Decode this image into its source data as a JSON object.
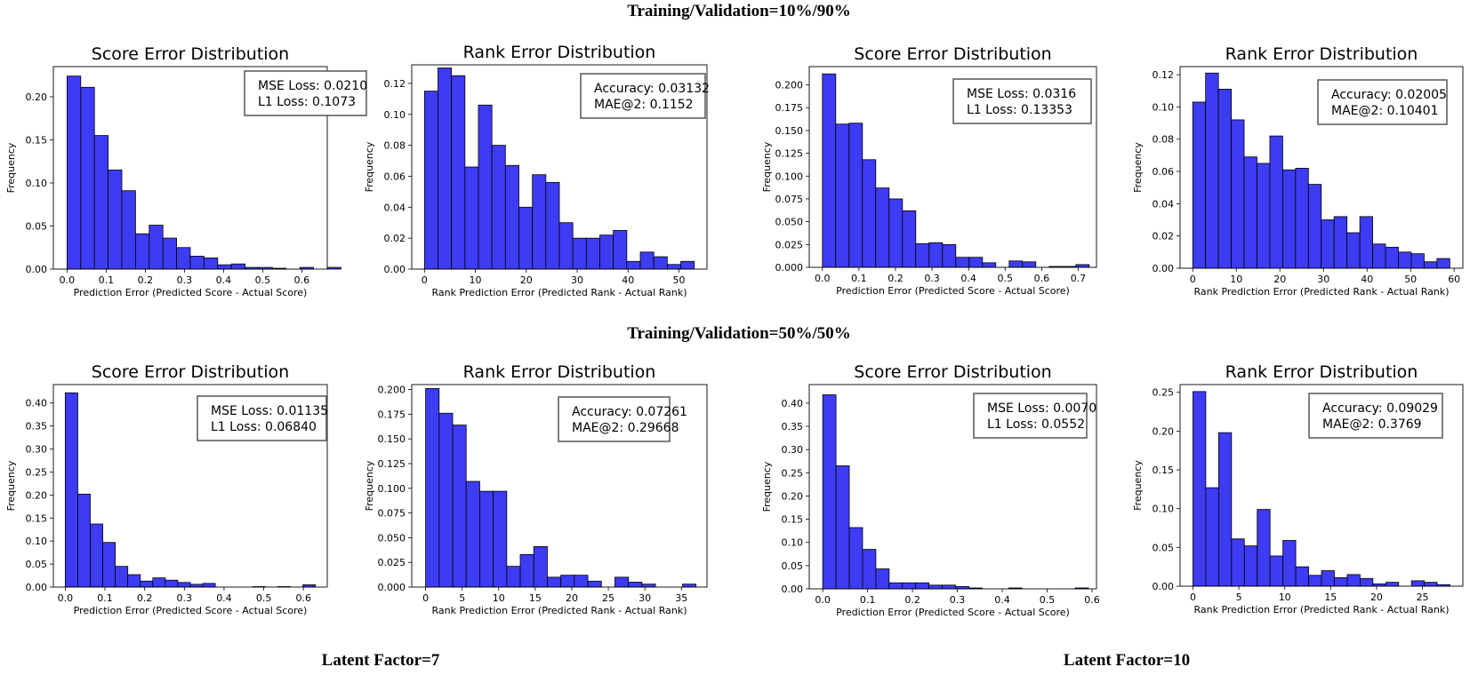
{
  "headers": {
    "top": "Training/Validation=10%/90%",
    "middle": "Training/Validation=50%/50%",
    "bottom_left": "Latent Factor=7",
    "bottom_right": "Latent Factor=10"
  },
  "colors": {
    "bar": "#3d3bf3",
    "bar_edge": "#000000"
  },
  "chart_data": [
    {
      "id": "c1",
      "type": "bar",
      "title": "Score Error Distribution",
      "xlabel": "Prediction Error (Predicted Score - Actual Score)",
      "ylabel": "Frequency",
      "bin_start": 0.0,
      "bin_width": 0.035,
      "values": [
        0.224,
        0.211,
        0.155,
        0.115,
        0.091,
        0.041,
        0.051,
        0.036,
        0.025,
        0.015,
        0.013,
        0.005,
        0.006,
        0.002,
        0.002,
        0.001,
        0,
        0.002,
        0,
        0.002
      ],
      "xlim": [
        -0.035,
        0.665
      ],
      "ylim": [
        0,
        0.235
      ],
      "xticks": [
        {
          "v": 0.0,
          "label": "0.0"
        },
        {
          "v": 0.1,
          "label": "0.1"
        },
        {
          "v": 0.2,
          "label": "0.2"
        },
        {
          "v": 0.3,
          "label": "0.3"
        },
        {
          "v": 0.4,
          "label": "0.4"
        },
        {
          "v": 0.5,
          "label": "0.5"
        },
        {
          "v": 0.6,
          "label": "0.6"
        }
      ],
      "yticks": [
        {
          "v": 0.0,
          "label": "0.00"
        },
        {
          "v": 0.05,
          "label": "0.05"
        },
        {
          "v": 0.1,
          "label": "0.10"
        },
        {
          "v": 0.15,
          "label": "0.15"
        },
        {
          "v": 0.2,
          "label": "0.20"
        }
      ],
      "annotation": [
        "MSE Loss: 0.0210",
        "L1 Loss: 0.1073"
      ]
    },
    {
      "id": "c2",
      "type": "bar",
      "title": "Rank Error Distribution",
      "xlabel": "Rank Prediction Error (Predicted Rank - Actual Rank)",
      "ylabel": "Frequency",
      "bin_start": 0,
      "bin_width": 2.65,
      "values": [
        0.115,
        0.13,
        0.125,
        0.066,
        0.106,
        0.08,
        0.067,
        0.04,
        0.061,
        0.056,
        0.03,
        0.02,
        0.02,
        0.022,
        0.025,
        0.005,
        0.011,
        0.008,
        0.003,
        0.005
      ],
      "xlim": [
        -2.5,
        55.5
      ],
      "ylim": [
        0,
        0.132
      ],
      "xticks": [
        {
          "v": 0,
          "label": "0"
        },
        {
          "v": 10,
          "label": "10"
        },
        {
          "v": 20,
          "label": "20"
        },
        {
          "v": 30,
          "label": "30"
        },
        {
          "v": 40,
          "label": "40"
        },
        {
          "v": 50,
          "label": "50"
        }
      ],
      "yticks": [
        {
          "v": 0.0,
          "label": "0.00"
        },
        {
          "v": 0.02,
          "label": "0.02"
        },
        {
          "v": 0.04,
          "label": "0.04"
        },
        {
          "v": 0.06,
          "label": "0.06"
        },
        {
          "v": 0.08,
          "label": "0.08"
        },
        {
          "v": 0.1,
          "label": "0.10"
        },
        {
          "v": 0.12,
          "label": "0.12"
        }
      ],
      "annotation": [
        "Accuracy: 0.03132",
        "MAE@2: 0.1152"
      ]
    },
    {
      "id": "c3",
      "type": "bar",
      "title": "Score Error Distribution",
      "xlabel": "Prediction Error (Predicted Score - Actual Score)",
      "ylabel": "Frequency",
      "bin_start": 0.0,
      "bin_width": 0.0365,
      "values": [
        0.212,
        0.157,
        0.158,
        0.118,
        0.087,
        0.075,
        0.062,
        0.026,
        0.027,
        0.025,
        0.011,
        0.011,
        0.005,
        0,
        0.007,
        0.006,
        0,
        0.001,
        0.001,
        0.003
      ],
      "xlim": [
        -0.036,
        0.75
      ],
      "ylim": [
        0,
        0.22
      ],
      "xticks": [
        {
          "v": 0.0,
          "label": "0.0"
        },
        {
          "v": 0.1,
          "label": "0.1"
        },
        {
          "v": 0.2,
          "label": "0.2"
        },
        {
          "v": 0.3,
          "label": "0.3"
        },
        {
          "v": 0.4,
          "label": "0.4"
        },
        {
          "v": 0.5,
          "label": "0.5"
        },
        {
          "v": 0.6,
          "label": "0.6"
        },
        {
          "v": 0.7,
          "label": "0.7"
        }
      ],
      "yticks": [
        {
          "v": 0.0,
          "label": "0.000"
        },
        {
          "v": 0.025,
          "label": "0.025"
        },
        {
          "v": 0.05,
          "label": "0.050"
        },
        {
          "v": 0.075,
          "label": "0.075"
        },
        {
          "v": 0.1,
          "label": "0.100"
        },
        {
          "v": 0.125,
          "label": "0.125"
        },
        {
          "v": 0.15,
          "label": "0.150"
        },
        {
          "v": 0.175,
          "label": "0.175"
        },
        {
          "v": 0.2,
          "label": "0.200"
        }
      ],
      "annotation": [
        "MSE Loss: 0.0316",
        "L1 Loss: 0.13353"
      ]
    },
    {
      "id": "c4",
      "type": "bar",
      "title": "Rank Error Distribution",
      "xlabel": "Rank Prediction Error (Predicted Rank - Actual Rank)",
      "ylabel": "Frequency",
      "bin_start": 0,
      "bin_width": 2.95,
      "values": [
        0.103,
        0.121,
        0.111,
        0.092,
        0.069,
        0.065,
        0.082,
        0.061,
        0.062,
        0.052,
        0.03,
        0.032,
        0.022,
        0.032,
        0.015,
        0.013,
        0.01,
        0.009,
        0.004,
        0.006
      ],
      "xlim": [
        -2.9,
        62
      ],
      "ylim": [
        0,
        0.125
      ],
      "xticks": [
        {
          "v": 0,
          "label": "0"
        },
        {
          "v": 10,
          "label": "10"
        },
        {
          "v": 20,
          "label": "20"
        },
        {
          "v": 30,
          "label": "30"
        },
        {
          "v": 40,
          "label": "40"
        },
        {
          "v": 50,
          "label": "50"
        },
        {
          "v": 60,
          "label": "60"
        }
      ],
      "yticks": [
        {
          "v": 0.0,
          "label": "0.00"
        },
        {
          "v": 0.02,
          "label": "0.02"
        },
        {
          "v": 0.04,
          "label": "0.04"
        },
        {
          "v": 0.06,
          "label": "0.06"
        },
        {
          "v": 0.08,
          "label": "0.08"
        },
        {
          "v": 0.1,
          "label": "0.10"
        },
        {
          "v": 0.12,
          "label": "0.12"
        }
      ],
      "annotation": [
        "Accuracy: 0.02005",
        "MAE@2: 0.10401"
      ]
    },
    {
      "id": "c5",
      "type": "bar",
      "title": "Score Error Distribution",
      "xlabel": "Prediction Error (Predicted Score - Actual Score)",
      "ylabel": "Frequency",
      "bin_start": 0.0,
      "bin_width": 0.0315,
      "values": [
        0.422,
        0.202,
        0.137,
        0.097,
        0.045,
        0.027,
        0.013,
        0.02,
        0.015,
        0.01,
        0.006,
        0.008,
        0,
        0,
        0,
        0.001,
        0,
        0.001,
        0,
        0.005
      ],
      "xlim": [
        -0.03,
        0.66
      ],
      "ylim": [
        0,
        0.44
      ],
      "xticks": [
        {
          "v": 0.0,
          "label": "0.0"
        },
        {
          "v": 0.1,
          "label": "0.1"
        },
        {
          "v": 0.2,
          "label": "0.2"
        },
        {
          "v": 0.3,
          "label": "0.3"
        },
        {
          "v": 0.4,
          "label": "0.4"
        },
        {
          "v": 0.5,
          "label": "0.5"
        },
        {
          "v": 0.6,
          "label": "0.6"
        }
      ],
      "yticks": [
        {
          "v": 0.0,
          "label": "0.00"
        },
        {
          "v": 0.05,
          "label": "0.05"
        },
        {
          "v": 0.1,
          "label": "0.10"
        },
        {
          "v": 0.15,
          "label": "0.15"
        },
        {
          "v": 0.2,
          "label": "0.20"
        },
        {
          "v": 0.25,
          "label": "0.25"
        },
        {
          "v": 0.3,
          "label": "0.30"
        },
        {
          "v": 0.35,
          "label": "0.35"
        },
        {
          "v": 0.4,
          "label": "0.40"
        }
      ],
      "annotation": [
        "MSE Loss: 0.01135",
        "L1 Loss: 0.06840"
      ]
    },
    {
      "id": "c6",
      "type": "bar",
      "title": "Rank Error Distribution",
      "xlabel": "Rank Prediction Error (Predicted Rank - Actual Rank)",
      "ylabel": "Frequency",
      "bin_start": 0,
      "bin_width": 1.85,
      "values": [
        0.201,
        0.176,
        0.164,
        0.107,
        0.097,
        0.097,
        0.021,
        0.033,
        0.041,
        0.01,
        0.012,
        0.012,
        0.006,
        0,
        0.01,
        0.005,
        0.003,
        0,
        0,
        0.003
      ],
      "xlim": [
        -1.9,
        38.5
      ],
      "ylim": [
        0,
        0.205
      ],
      "xticks": [
        {
          "v": 0,
          "label": "0"
        },
        {
          "v": 5,
          "label": "5"
        },
        {
          "v": 10,
          "label": "10"
        },
        {
          "v": 15,
          "label": "15"
        },
        {
          "v": 20,
          "label": "20"
        },
        {
          "v": 25,
          "label": "25"
        },
        {
          "v": 30,
          "label": "30"
        },
        {
          "v": 35,
          "label": "35"
        }
      ],
      "yticks": [
        {
          "v": 0.0,
          "label": "0.000"
        },
        {
          "v": 0.025,
          "label": "0.025"
        },
        {
          "v": 0.05,
          "label": "0.050"
        },
        {
          "v": 0.075,
          "label": "0.075"
        },
        {
          "v": 0.1,
          "label": "0.100"
        },
        {
          "v": 0.125,
          "label": "0.125"
        },
        {
          "v": 0.15,
          "label": "0.150"
        },
        {
          "v": 0.175,
          "label": "0.175"
        },
        {
          "v": 0.2,
          "label": "0.200"
        }
      ],
      "annotation": [
        "Accuracy: 0.07261",
        "MAE@2: 0.29668"
      ]
    },
    {
      "id": "c7",
      "type": "bar",
      "title": "Score Error Distribution",
      "xlabel": "Prediction Error (Predicted Score - Actual Score)",
      "ylabel": "Frequency",
      "bin_start": 0.0,
      "bin_width": 0.0296,
      "values": [
        0.418,
        0.265,
        0.132,
        0.085,
        0.043,
        0.013,
        0.013,
        0.013,
        0.008,
        0.008,
        0.005,
        0.002,
        0,
        0,
        0.002,
        0,
        0,
        0,
        0,
        0.002
      ],
      "xlim": [
        -0.03,
        0.61
      ],
      "ylim": [
        0,
        0.44
      ],
      "xticks": [
        {
          "v": 0.0,
          "label": "0.0"
        },
        {
          "v": 0.1,
          "label": "0.1"
        },
        {
          "v": 0.2,
          "label": "0.2"
        },
        {
          "v": 0.3,
          "label": "0.3"
        },
        {
          "v": 0.4,
          "label": "0.4"
        },
        {
          "v": 0.5,
          "label": "0.5"
        },
        {
          "v": 0.6,
          "label": "0.6"
        }
      ],
      "yticks": [
        {
          "v": 0.0,
          "label": "0.00"
        },
        {
          "v": 0.05,
          "label": "0.05"
        },
        {
          "v": 0.1,
          "label": "0.10"
        },
        {
          "v": 0.15,
          "label": "0.15"
        },
        {
          "v": 0.2,
          "label": "0.20"
        },
        {
          "v": 0.25,
          "label": "0.25"
        },
        {
          "v": 0.3,
          "label": "0.30"
        },
        {
          "v": 0.35,
          "label": "0.35"
        },
        {
          "v": 0.4,
          "label": "0.40"
        }
      ],
      "annotation": [
        "MSE Loss: 0.0070",
        "L1 Loss: 0.0552"
      ]
    },
    {
      "id": "c8",
      "type": "bar",
      "title": "Rank Error Distribution",
      "xlabel": "Rank Prediction Error (Predicted Rank - Actual Rank)",
      "ylabel": "Frequency",
      "bin_start": 0,
      "bin_width": 1.4,
      "values": [
        0.251,
        0.127,
        0.198,
        0.061,
        0.052,
        0.099,
        0.039,
        0.059,
        0.025,
        0.014,
        0.02,
        0.011,
        0.015,
        0.01,
        0.003,
        0.005,
        0,
        0.007,
        0.005,
        0.002
      ],
      "xlim": [
        -1.4,
        29.4
      ],
      "ylim": [
        0,
        0.26
      ],
      "xticks": [
        {
          "v": 0,
          "label": "0"
        },
        {
          "v": 5,
          "label": "5"
        },
        {
          "v": 10,
          "label": "10"
        },
        {
          "v": 15,
          "label": "15"
        },
        {
          "v": 20,
          "label": "20"
        },
        {
          "v": 25,
          "label": "25"
        }
      ],
      "yticks": [
        {
          "v": 0.0,
          "label": "0.00"
        },
        {
          "v": 0.05,
          "label": "0.05"
        },
        {
          "v": 0.1,
          "label": "0.10"
        },
        {
          "v": 0.15,
          "label": "0.15"
        },
        {
          "v": 0.2,
          "label": "0.20"
        },
        {
          "v": 0.25,
          "label": "0.25"
        }
      ],
      "annotation": [
        "Accuracy: 0.09029",
        "MAE@2: 0.3769"
      ]
    }
  ]
}
